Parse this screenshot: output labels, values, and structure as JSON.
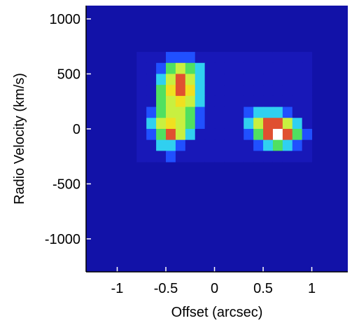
{
  "chart_data": {
    "type": "heatmap",
    "xlabel": "Offset (arcsec)",
    "ylabel": "Radio Velocity (km/s)",
    "xlim": [
      -1.32,
      1.37
    ],
    "ylim": [
      -1300,
      1121
    ],
    "xticks": [
      -1,
      -0.5,
      0,
      0.5,
      1
    ],
    "yticks": [
      -1000,
      -500,
      0,
      500,
      1000
    ],
    "background": "#1212a8",
    "zlim": [
      0,
      10
    ],
    "colormap": [
      "#000050",
      "#1818b8",
      "#2050ff",
      "#30d0f0",
      "#50e060",
      "#c8f040",
      "#f0e020",
      "#e05030",
      "#e010a0",
      "#f070e0",
      "#ffffff"
    ],
    "x": [
      -0.75,
      -0.65,
      -0.55,
      -0.45,
      -0.35,
      -0.25,
      -0.15,
      -0.05,
      0.05,
      0.15,
      0.25,
      0.35,
      0.45,
      0.55,
      0.65,
      0.75,
      0.85,
      0.95
    ],
    "y": [
      650,
      550,
      450,
      350,
      250,
      150,
      50,
      -50,
      -150,
      -250
    ],
    "values": [
      [
        1,
        1,
        1,
        2,
        2,
        2,
        1,
        1,
        1,
        1,
        1,
        1,
        1,
        1,
        1,
        1,
        1,
        1
      ],
      [
        1,
        1,
        2,
        4,
        5,
        4,
        3,
        1,
        1,
        1,
        1,
        1,
        1,
        1,
        1,
        1,
        1,
        1
      ],
      [
        1,
        1,
        3,
        5,
        7,
        5,
        3,
        1,
        1,
        1,
        1,
        1,
        1,
        1,
        1,
        1,
        1,
        1
      ],
      [
        1,
        1,
        4,
        6,
        7,
        6,
        3,
        1,
        1,
        1,
        1,
        1,
        1,
        1,
        1,
        1,
        1,
        1
      ],
      [
        1,
        1,
        4,
        5,
        6,
        5,
        3,
        1,
        1,
        1,
        1,
        1,
        1,
        1,
        1,
        1,
        1,
        1
      ],
      [
        1,
        2,
        4,
        5,
        5,
        4,
        2,
        1,
        1,
        1,
        1,
        2,
        3,
        3,
        3,
        2,
        1,
        1
      ],
      [
        1,
        3,
        5,
        6,
        5,
        4,
        2,
        1,
        1,
        1,
        1,
        3,
        5,
        7,
        7,
        5,
        3,
        1
      ],
      [
        1,
        2,
        4,
        7,
        5,
        3,
        1,
        1,
        1,
        1,
        1,
        2,
        4,
        7,
        10,
        7,
        4,
        2
      ],
      [
        1,
        1,
        3,
        3,
        2,
        1,
        1,
        1,
        1,
        1,
        1,
        1,
        2,
        3,
        4,
        3,
        2,
        1
      ],
      [
        1,
        1,
        1,
        2,
        1,
        1,
        1,
        1,
        1,
        1,
        1,
        1,
        1,
        1,
        1,
        1,
        1,
        1
      ]
    ]
  }
}
